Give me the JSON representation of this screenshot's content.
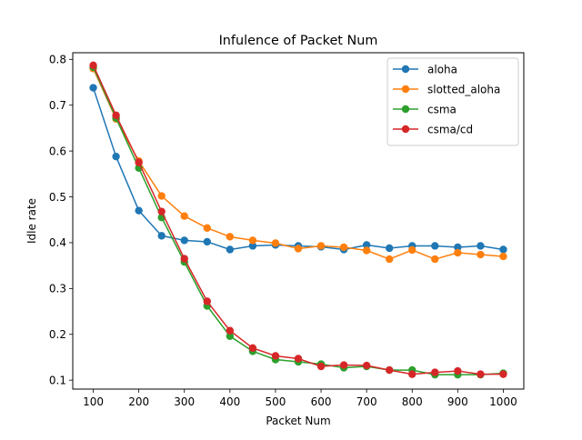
{
  "chart_data": {
    "type": "line",
    "title": "Infulence of Packet Num",
    "xlabel": "Packet Num",
    "ylabel": "Idle rate",
    "xlim": [
      55,
      1045
    ],
    "ylim": [
      0.0805,
      0.8145
    ],
    "xticks": [
      100,
      200,
      300,
      400,
      500,
      600,
      700,
      800,
      900,
      1000
    ],
    "yticks": [
      0.1,
      0.2,
      0.3,
      0.4,
      0.5,
      0.6,
      0.7,
      0.8
    ],
    "ytick_labels": [
      "0.1",
      "0.2",
      "0.3",
      "0.4",
      "0.5",
      "0.6",
      "0.7",
      "0.8"
    ],
    "grid": false,
    "legend_position": "top-right",
    "marker": "circle",
    "x": [
      100,
      150,
      200,
      250,
      300,
      350,
      400,
      450,
      500,
      550,
      600,
      650,
      700,
      750,
      800,
      850,
      900,
      950,
      1000
    ],
    "series": [
      {
        "name": "aloha",
        "color": "#1f77b4",
        "values": [
          0.738,
          0.588,
          0.47,
          0.415,
          0.405,
          0.402,
          0.385,
          0.393,
          0.395,
          0.393,
          0.391,
          0.385,
          0.395,
          0.388,
          0.393,
          0.393,
          0.39,
          0.393,
          0.385
        ]
      },
      {
        "name": "slotted_aloha",
        "color": "#ff7f0e",
        "values": [
          0.78,
          0.67,
          0.578,
          0.502,
          0.458,
          0.432,
          0.413,
          0.405,
          0.399,
          0.387,
          0.393,
          0.39,
          0.383,
          0.364,
          0.384,
          0.364,
          0.378,
          0.374,
          0.37
        ]
      },
      {
        "name": "csma",
        "color": "#2ca02c",
        "values": [
          0.783,
          0.672,
          0.563,
          0.455,
          0.358,
          0.262,
          0.196,
          0.163,
          0.145,
          0.14,
          0.135,
          0.127,
          0.13,
          0.122,
          0.122,
          0.112,
          0.112,
          0.112,
          0.115
        ]
      },
      {
        "name": "csma/cd",
        "color": "#d62728",
        "values": [
          0.787,
          0.678,
          0.575,
          0.468,
          0.365,
          0.272,
          0.208,
          0.17,
          0.153,
          0.147,
          0.13,
          0.133,
          0.132,
          0.122,
          0.113,
          0.117,
          0.12,
          0.113,
          0.113
        ]
      }
    ]
  }
}
